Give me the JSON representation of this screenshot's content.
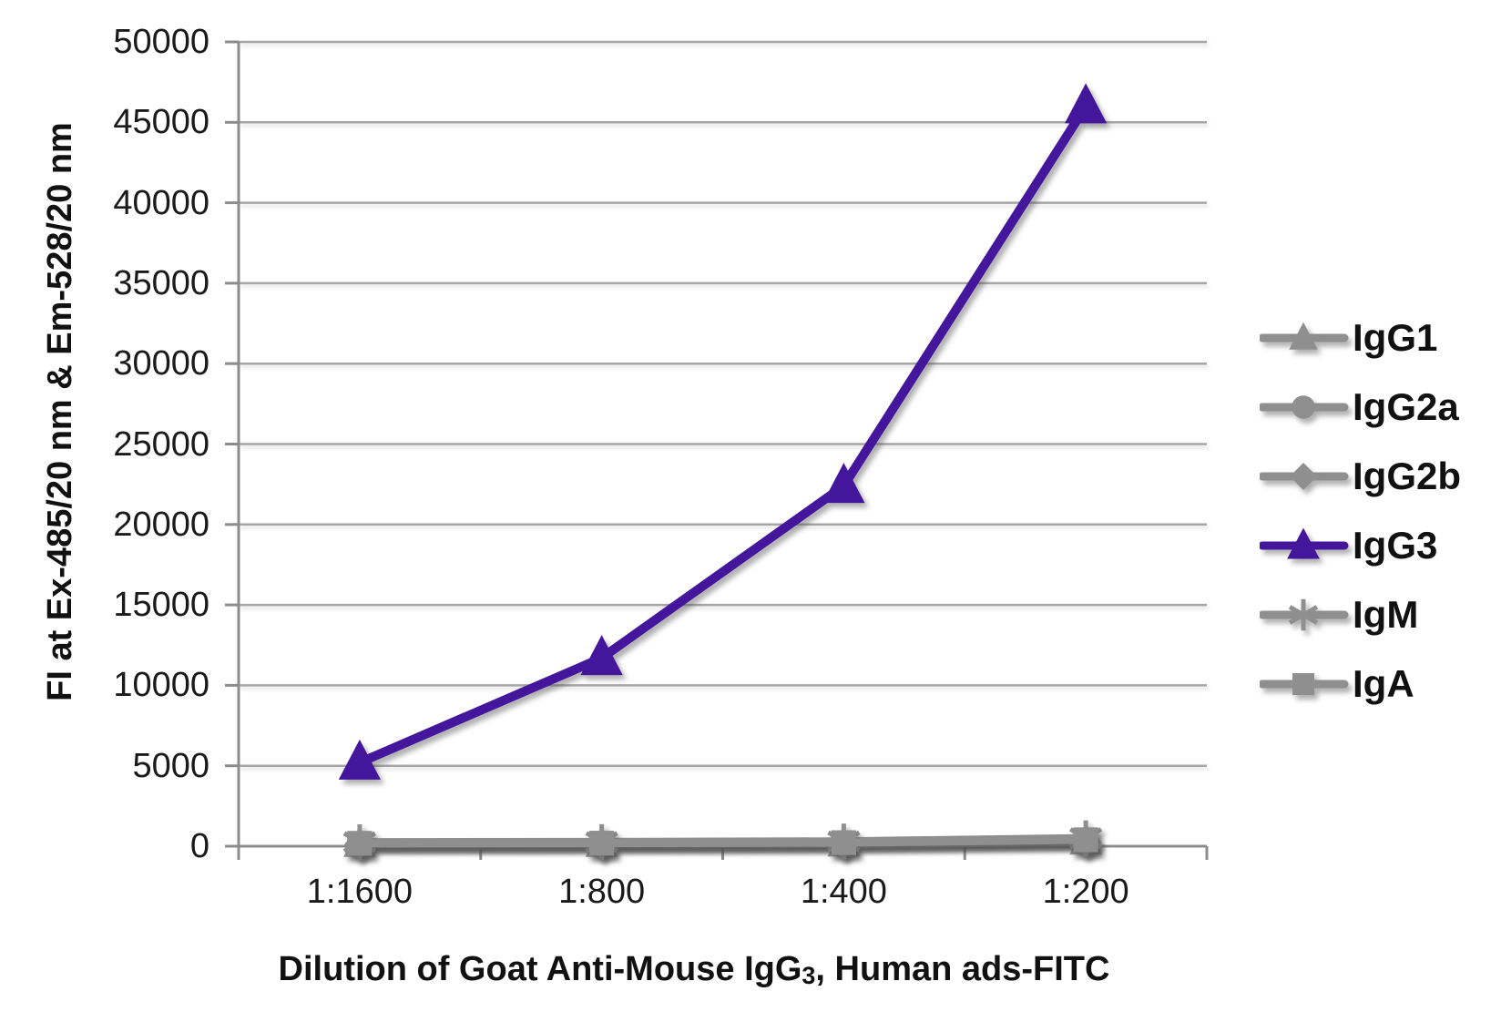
{
  "chart_data": {
    "type": "line",
    "title": "",
    "ylabel": "FI at Ex-485/20 nm & Em-528/20 nm",
    "xlabel": "Dilution of Goat Anti-Mouse IgG3, Human ads-FITC",
    "xlabel_parts": {
      "main": "Dilution of Goat Anti-Mouse IgG",
      "sub": "3",
      "tail": ", Human ads-FITC"
    },
    "categories": [
      "1:1600",
      "1:800",
      "1:400",
      "1:200"
    ],
    "yticks": [
      0,
      5000,
      10000,
      15000,
      20000,
      25000,
      30000,
      35000,
      40000,
      45000,
      50000
    ],
    "ylim": [
      0,
      50000
    ],
    "grid": "horizontal",
    "legend_position": "right",
    "series": [
      {
        "name": "IgG1",
        "marker": "triangle",
        "color": "#8F8F8F",
        "values": [
          150,
          150,
          180,
          300
        ]
      },
      {
        "name": "IgG2a",
        "marker": "circle",
        "color": "#8F8F8F",
        "values": [
          100,
          110,
          130,
          250
        ]
      },
      {
        "name": "IgG2b",
        "marker": "diamond",
        "color": "#8F8F8F",
        "values": [
          120,
          130,
          150,
          250
        ]
      },
      {
        "name": "IgG3",
        "marker": "triangle",
        "color": "#43169B",
        "values": [
          5200,
          11700,
          22400,
          46000
        ]
      },
      {
        "name": "IgM",
        "marker": "asterisk",
        "color": "#8F8F8F",
        "values": [
          250,
          260,
          300,
          500
        ]
      },
      {
        "name": "IgA",
        "marker": "square",
        "color": "#8F8F8F",
        "values": [
          180,
          190,
          220,
          400
        ]
      }
    ],
    "colors": {
      "gridline": "#A6A6A6",
      "axis": "#8C8C8C",
      "text": "#1A1A1A",
      "highlight": "#43169B",
      "muted": "#8F8F8F"
    }
  }
}
